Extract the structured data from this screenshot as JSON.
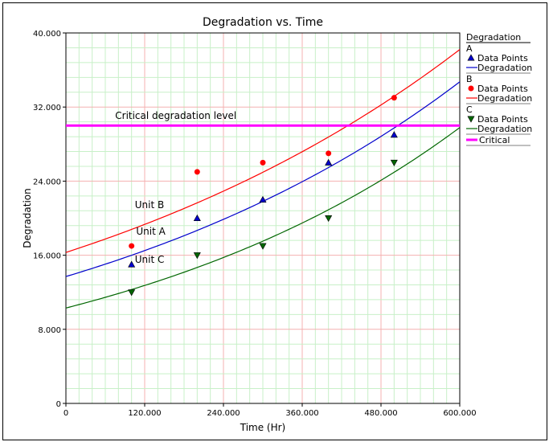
{
  "chart_data": {
    "type": "scatter",
    "title": "Degradation vs. Time",
    "xlabel": "Time (Hr)",
    "ylabel": "Degradation",
    "xlim": [
      0,
      600
    ],
    "ylim": [
      0,
      40
    ],
    "xticks": [
      0,
      120,
      240,
      360,
      480,
      600
    ],
    "xtick_labels": [
      "0",
      "120.000",
      "240.000",
      "360.000",
      "480.000",
      "600.000"
    ],
    "yticks": [
      0,
      8,
      16,
      24,
      32,
      40
    ],
    "ytick_labels": [
      "0",
      "8.000",
      "16.000",
      "24.000",
      "32.000",
      "40.000"
    ],
    "grid": true,
    "legend_position": "right",
    "legend_title": "Degradation",
    "series": [
      {
        "name": "A",
        "color": "#0000cc",
        "marker": "triangle-up",
        "points_label": "Data Points",
        "line_label": "Degradation",
        "x": [
          100,
          200,
          300,
          400,
          500
        ],
        "y": [
          15,
          20,
          22,
          26,
          29
        ],
        "fit": {
          "a": 13.7,
          "b": 0.00155
        }
      },
      {
        "name": "B",
        "color": "#ff0000",
        "marker": "circle",
        "points_label": "Data Points",
        "line_label": "Degradation",
        "x": [
          100,
          200,
          300,
          400,
          500
        ],
        "y": [
          17,
          25,
          26,
          27,
          33
        ],
        "fit": {
          "a": 16.3,
          "b": 0.00142
        }
      },
      {
        "name": "C",
        "color": "#006600",
        "marker": "triangle-down",
        "points_label": "Data Points",
        "line_label": "Degradation",
        "x": [
          100,
          200,
          300,
          400,
          500
        ],
        "y": [
          12,
          16,
          17,
          20,
          26
        ],
        "fit": {
          "a": 10.3,
          "b": 0.00177
        }
      }
    ],
    "critical": {
      "value": 30,
      "label": "Critical",
      "color": "#ff00ff"
    },
    "annotations": [
      {
        "text": "Critical degradation level",
        "x": 75,
        "y": 30.7
      },
      {
        "text": "Unit B",
        "x": 105,
        "y": 21.1
      },
      {
        "text": "Unit A",
        "x": 107,
        "y": 18.2
      },
      {
        "text": "Unit C",
        "x": 105,
        "y": 15.2
      }
    ]
  }
}
